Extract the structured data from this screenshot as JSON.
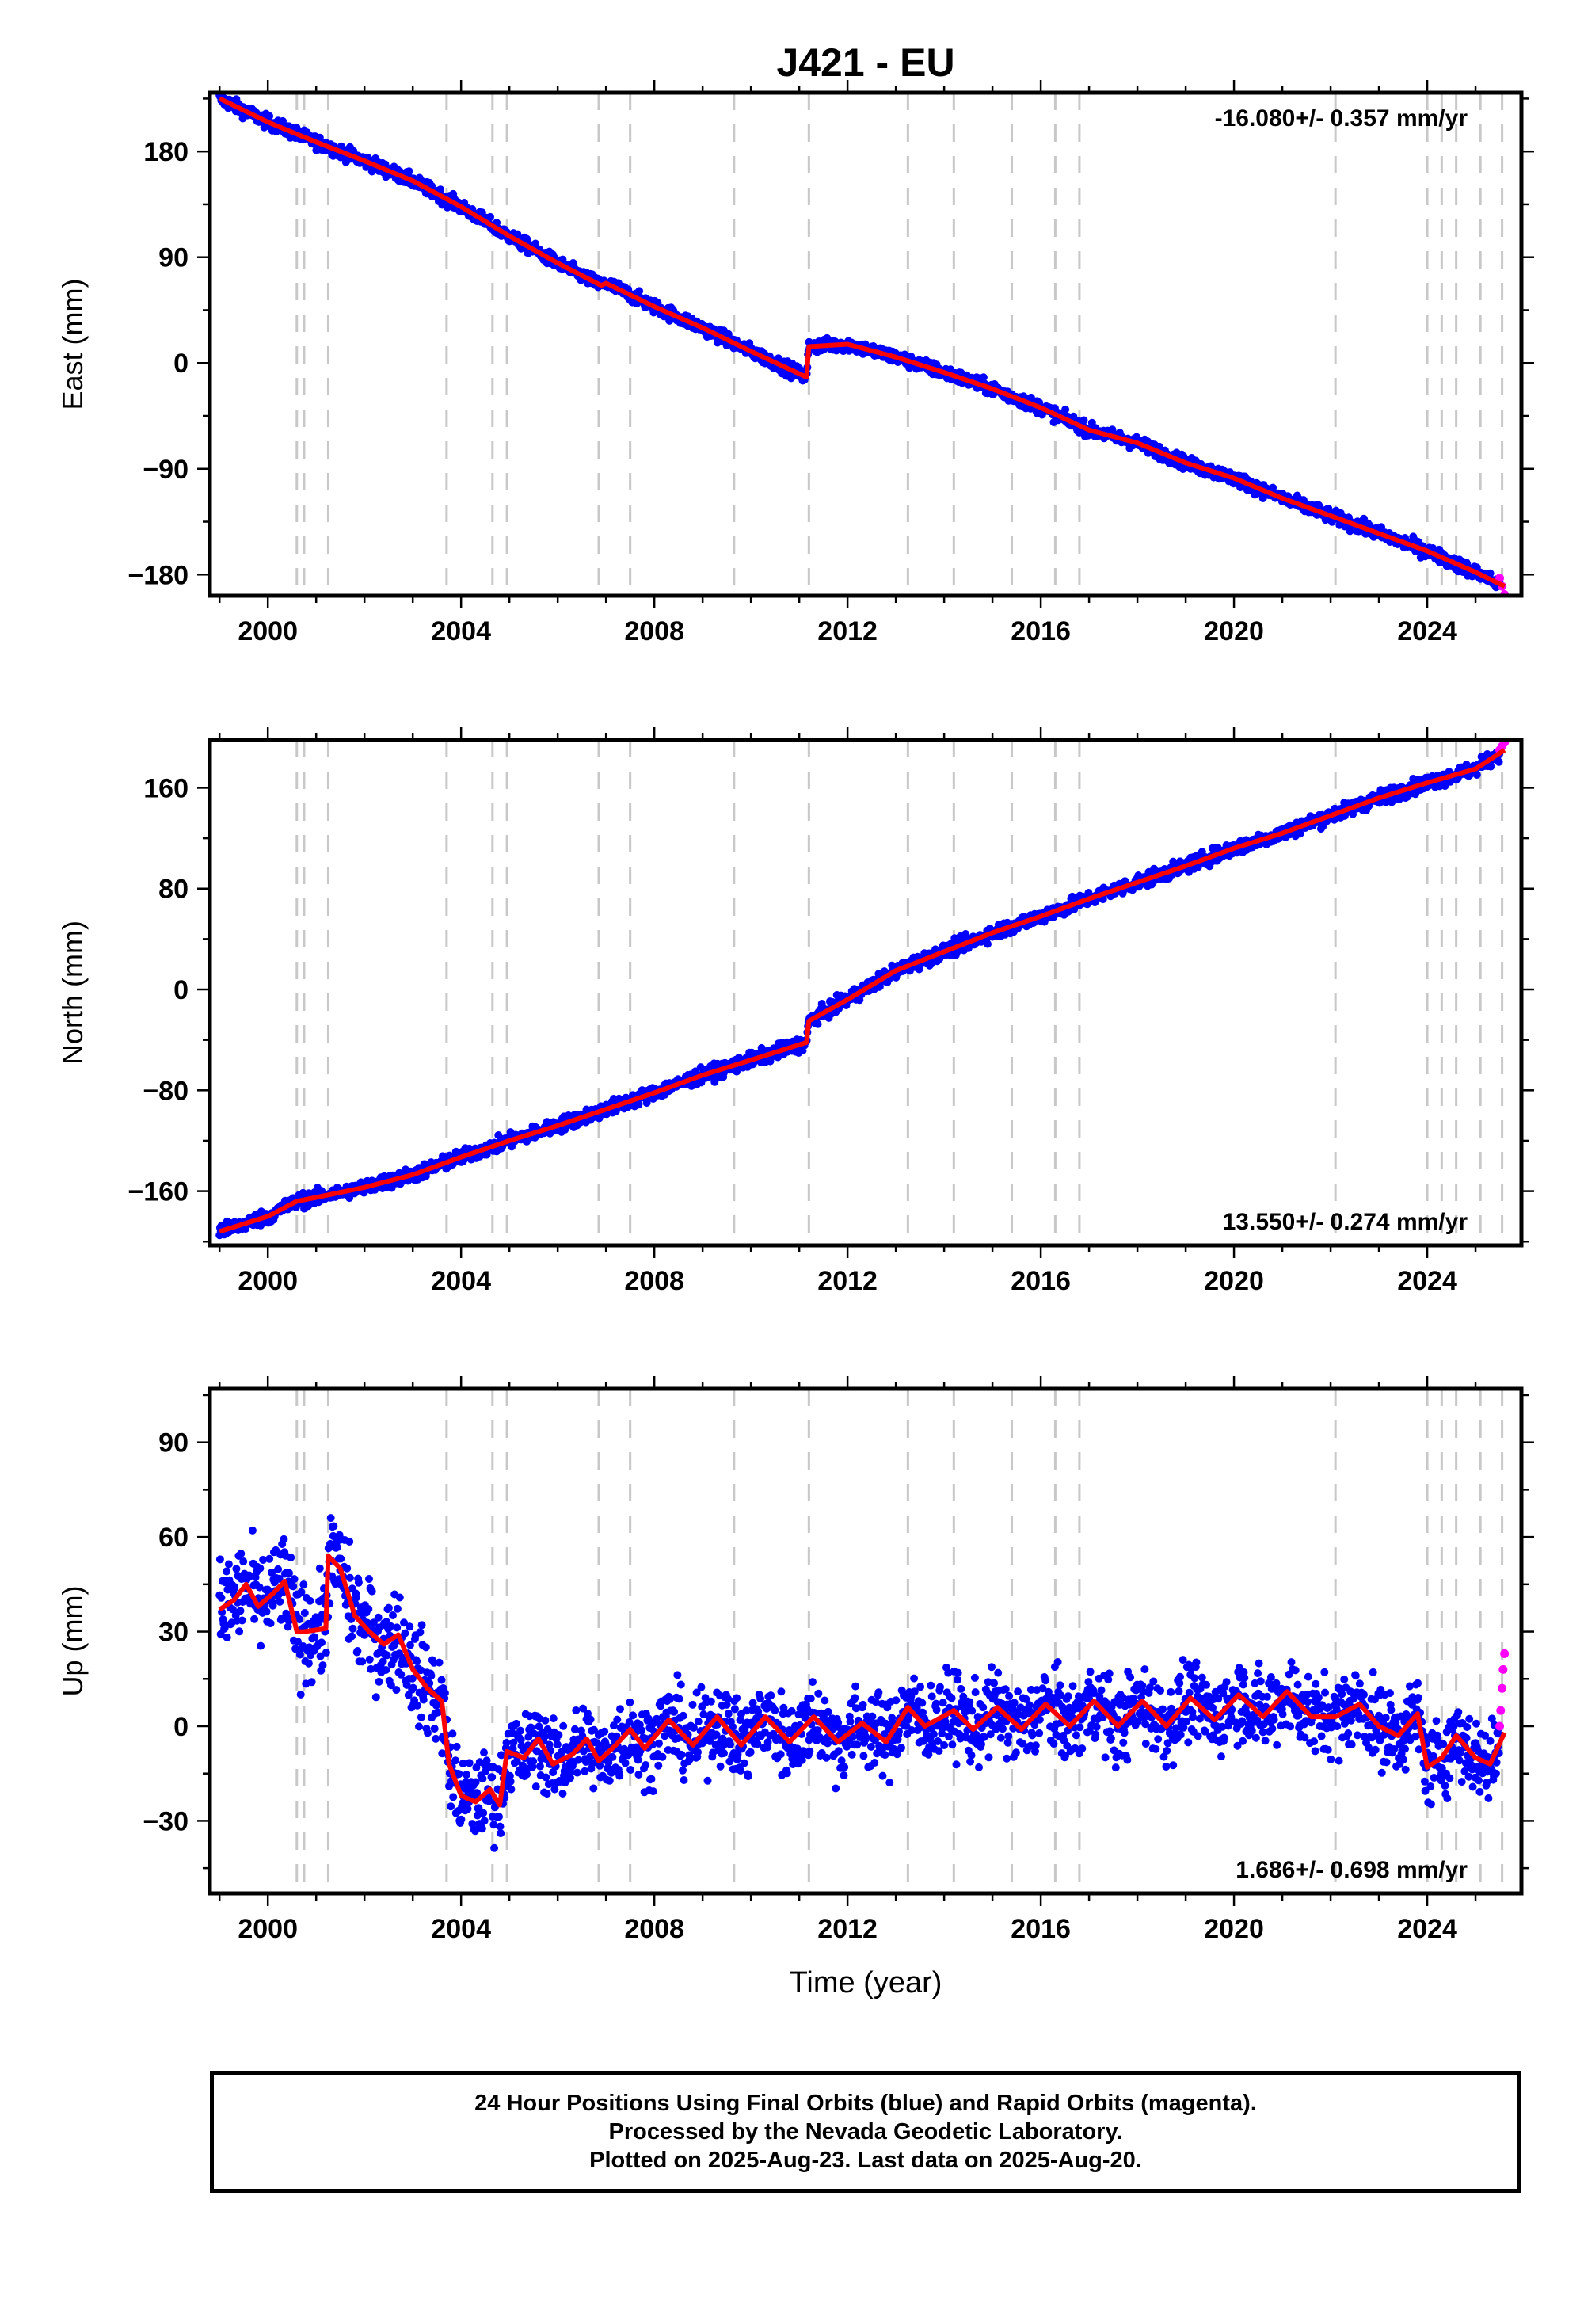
{
  "title": "J421 - EU",
  "xlabel": "Time (year)",
  "caption": [
    "24 Hour Positions Using Final Orbits (blue) and Rapid Orbits (magenta).",
    "Processed by the Nevada Geodetic Laboratory.",
    "Plotted on 2025-Aug-23. Last data on 2025-Aug-20."
  ],
  "colors": {
    "final": "#0000ff",
    "rapid": "#ff00ff",
    "model": "#ff0000",
    "event_lines": "#c8c8c8"
  },
  "chart_data": [
    {
      "type": "scatter",
      "ylabel": "East (mm)",
      "rate_label": "-16.080+/- 0.357 mm/yr",
      "rate_position": "top-right",
      "xlim": [
        1998.8,
        2025.95
      ],
      "ylim": [
        -198,
        230
      ],
      "xticks": [
        2000,
        2004,
        2008,
        2012,
        2016,
        2020,
        2024
      ],
      "yticks": [
        -180,
        -90,
        0,
        90,
        180
      ],
      "event_lines": [
        2000.6,
        2000.75,
        2001.25,
        2003.7,
        2004.65,
        2004.95,
        2006.85,
        2007.5,
        2009.65,
        2011.2,
        2013.25,
        2014.2,
        2015.4,
        2016.3,
        2016.8,
        2022.1,
        2024.0,
        2024.3,
        2024.6,
        2025.1,
        2025.55
      ],
      "model_series": {
        "name": "model",
        "x": [
          1999.0,
          2000.0,
          2001.0,
          2002.0,
          2003.0,
          2004.0,
          2005.0,
          2006.0,
          2006.9,
          2007.0,
          2008.0,
          2009.0,
          2010.0,
          2011.15,
          2011.2,
          2012.0,
          2013.0,
          2014.0,
          2015.0,
          2016.0,
          2017.0,
          2018.0,
          2019.0,
          2020.0,
          2021.0,
          2022.0,
          2023.0,
          2024.0,
          2025.0,
          2025.6
        ],
        "y": [
          225,
          205,
          188,
          172,
          155,
          133,
          108,
          85,
          66,
          68,
          48,
          30,
          10,
          -12,
          14,
          16,
          5,
          -8,
          -22,
          -38,
          -57,
          -68,
          -85,
          -98,
          -115,
          -130,
          -145,
          -160,
          -178,
          -190
        ]
      },
      "rapid_points": {
        "x": [
          2025.5,
          2025.55,
          2025.6
        ],
        "y": [
          -183,
          -190,
          -197
        ]
      }
    },
    {
      "type": "scatter",
      "ylabel": "North (mm)",
      "rate_label": "13.550+/- 0.274 mm/yr",
      "rate_position": "bottom-right",
      "xlim": [
        1998.8,
        2025.95
      ],
      "ylim": [
        -203,
        198
      ],
      "xticks": [
        2000,
        2004,
        2008,
        2012,
        2016,
        2020,
        2024
      ],
      "yticks": [
        -160,
        -80,
        0,
        80,
        160
      ],
      "event_lines": [
        2000.6,
        2000.75,
        2001.25,
        2003.7,
        2004.65,
        2004.95,
        2006.85,
        2007.5,
        2009.65,
        2011.2,
        2013.25,
        2014.2,
        2015.4,
        2016.3,
        2016.8,
        2022.1,
        2024.0,
        2024.3,
        2024.6,
        2025.1,
        2025.55
      ],
      "model_series": {
        "name": "model",
        "x": [
          1999.0,
          2000.0,
          2000.6,
          2001.0,
          2002.0,
          2003.0,
          2004.0,
          2005.0,
          2006.0,
          2007.0,
          2008.0,
          2009.0,
          2010.0,
          2011.15,
          2011.2,
          2012.0,
          2013.0,
          2014.0,
          2015.0,
          2016.0,
          2017.0,
          2018.0,
          2019.0,
          2020.0,
          2021.0,
          2022.0,
          2023.0,
          2024.0,
          2025.0,
          2025.6
        ],
        "y": [
          -192,
          -180,
          -168,
          -165,
          -157,
          -147,
          -133,
          -120,
          -108,
          -95,
          -82,
          -68,
          -56,
          -42,
          -25,
          -8,
          15,
          30,
          45,
          58,
          72,
          85,
          98,
          112,
          124,
          138,
          152,
          164,
          175,
          190
        ]
      },
      "rapid_points": {
        "x": [
          2025.5,
          2025.55,
          2025.6
        ],
        "y": [
          190,
          193,
          196
        ]
      }
    },
    {
      "type": "scatter",
      "ylabel": "Up (mm)",
      "rate_label": "1.686+/- 0.698 mm/yr",
      "rate_position": "bottom-right",
      "xlim": [
        1998.8,
        2025.95
      ],
      "ylim": [
        -53,
        107
      ],
      "xticks": [
        2000,
        2004,
        2008,
        2012,
        2016,
        2020,
        2024
      ],
      "yticks": [
        -30,
        0,
        30,
        60,
        90
      ],
      "event_lines": [
        2000.6,
        2000.75,
        2001.25,
        2003.7,
        2004.65,
        2004.95,
        2006.85,
        2007.5,
        2009.65,
        2011.2,
        2013.25,
        2014.2,
        2015.4,
        2016.3,
        2016.8,
        2022.1,
        2024.0,
        2024.3,
        2024.6,
        2025.1,
        2025.55
      ],
      "model_series": {
        "name": "model",
        "x": [
          1999.0,
          1999.3,
          1999.55,
          1999.8,
          2000.1,
          2000.35,
          2000.6,
          2000.75,
          2001.2,
          2001.25,
          2001.5,
          2001.8,
          2002.1,
          2002.4,
          2002.7,
          2003.0,
          2003.3,
          2003.6,
          2003.75,
          2004.0,
          2004.3,
          2004.6,
          2004.8,
          2004.95,
          2005.3,
          2005.6,
          2005.9,
          2006.3,
          2006.6,
          2006.85,
          2007.2,
          2007.5,
          2007.8,
          2008.3,
          2008.8,
          2009.3,
          2009.8,
          2010.3,
          2010.8,
          2011.3,
          2011.8,
          2012.3,
          2012.8,
          2013.25,
          2013.6,
          2014.2,
          2014.6,
          2015.1,
          2015.6,
          2016.1,
          2016.6,
          2017.1,
          2017.6,
          2018.1,
          2018.6,
          2019.1,
          2019.6,
          2020.1,
          2020.6,
          2021.1,
          2021.6,
          2022.1,
          2022.6,
          2023.0,
          2023.4,
          2023.8,
          2024.0,
          2024.3,
          2024.6,
          2025.0,
          2025.3,
          2025.6
        ],
        "y": [
          37,
          40,
          45,
          38,
          42,
          46,
          30,
          30,
          31,
          54,
          50,
          35,
          30,
          26,
          29,
          18,
          12,
          8,
          -12,
          -22,
          -24,
          -20,
          -25,
          -8,
          -10,
          -4,
          -12,
          -9,
          -4,
          -11,
          -6,
          -1,
          -7,
          2,
          -6,
          3,
          -6,
          3,
          -5,
          3,
          -5,
          1,
          -5,
          6,
          0,
          5,
          -1,
          6,
          -1,
          7,
          0,
          8,
          0,
          8,
          0,
          9,
          2,
          10,
          3,
          11,
          3,
          3,
          7,
          0,
          -3,
          4,
          -13,
          -10,
          -3,
          -10,
          -12,
          -2
        ]
      },
      "rapid_points": {
        "x": [
          2025.5,
          2025.52,
          2025.55,
          2025.57,
          2025.6
        ],
        "y": [
          0,
          5,
          12,
          18,
          23
        ]
      }
    }
  ]
}
